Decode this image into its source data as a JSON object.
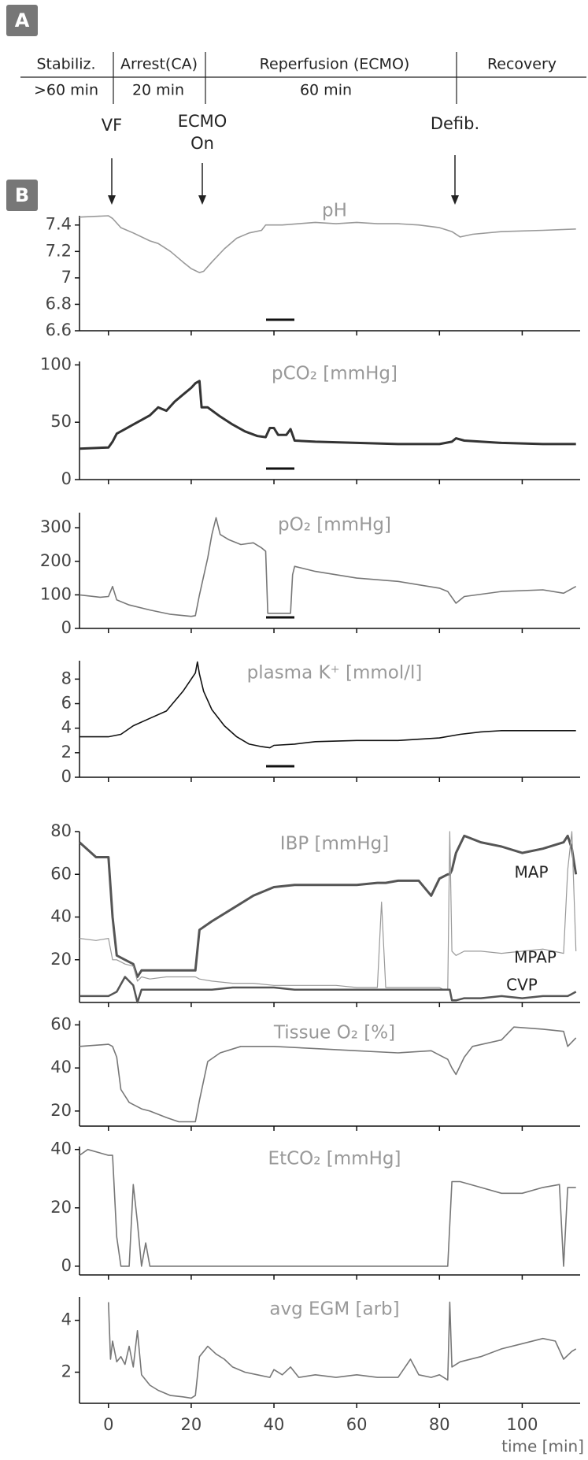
{
  "header": {
    "panels": [
      "A",
      "B"
    ],
    "phases": [
      {
        "label": "Stabiliz.",
        "duration": ">60 min"
      },
      {
        "label": "Arrest(CA)",
        "duration": "20 min"
      },
      {
        "label": "Reperfusion (ECMO)",
        "duration": "60 min"
      },
      {
        "label": "Recovery"
      }
    ],
    "events": [
      {
        "lines": [
          "VF"
        ]
      },
      {
        "lines": [
          "ECMO",
          "On"
        ]
      },
      {
        "lines": [
          "Defib."
        ]
      }
    ]
  },
  "chart_data": [
    {
      "type": "line",
      "title": "pH",
      "color": "#999999",
      "xlim": [
        -7,
        114
      ],
      "ylim": [
        6.6,
        7.47
      ],
      "yticks": [
        6.6,
        6.8,
        7,
        7.2,
        7.4
      ],
      "x": [
        -7,
        0,
        1,
        3,
        6,
        10,
        12,
        15,
        18,
        20,
        22,
        23,
        25,
        28,
        31,
        34,
        37,
        38,
        42,
        46,
        50,
        55,
        60,
        65,
        70,
        75,
        80,
        83,
        85,
        88,
        95,
        105,
        113
      ],
      "values": [
        7.46,
        7.47,
        7.45,
        7.38,
        7.34,
        7.28,
        7.26,
        7.2,
        7.12,
        7.07,
        7.04,
        7.05,
        7.12,
        7.22,
        7.3,
        7.34,
        7.36,
        7.4,
        7.4,
        7.41,
        7.42,
        7.41,
        7.42,
        7.41,
        7.41,
        7.4,
        7.38,
        7.35,
        7.31,
        7.33,
        7.35,
        7.36,
        7.37
      ]
    },
    {
      "type": "line",
      "title": "pCO₂ [mmHg]",
      "color": "#333333",
      "xlim": [
        -7,
        114
      ],
      "ylim": [
        0,
        103
      ],
      "yticks": [
        0,
        50,
        100
      ],
      "x": [
        -7,
        0,
        1,
        2,
        4,
        6,
        8,
        10,
        12,
        14,
        16,
        18,
        20,
        21,
        22,
        22.5,
        24,
        27,
        30,
        33,
        36,
        38,
        39,
        40,
        41,
        43,
        44,
        45,
        50,
        60,
        70,
        80,
        83,
        84,
        86,
        95,
        105,
        113
      ],
      "values": [
        27,
        28,
        33,
        40,
        44,
        48,
        52,
        56,
        63,
        60,
        68,
        74,
        80,
        84,
        86,
        63,
        63,
        55,
        48,
        42,
        38,
        37,
        45,
        45,
        39,
        39,
        44,
        34,
        33,
        32,
        31,
        31,
        33,
        36,
        34,
        32,
        31,
        31
      ]
    },
    {
      "type": "line",
      "title": "pO₂ [mmHg]",
      "color": "#777777",
      "xlim": [
        -7,
        114
      ],
      "ylim": [
        0,
        345
      ],
      "yticks": [
        0,
        100,
        200,
        300
      ],
      "x": [
        -7,
        -2,
        0,
        1,
        2,
        5,
        10,
        15,
        20,
        21,
        22,
        24,
        25,
        26,
        27,
        29,
        32,
        35,
        37,
        38,
        38.5,
        44,
        44.5,
        45,
        50,
        60,
        70,
        80,
        82,
        84,
        86,
        95,
        105,
        110,
        113
      ],
      "values": [
        100,
        93,
        95,
        125,
        85,
        70,
        55,
        42,
        36,
        38,
        100,
        210,
        280,
        330,
        280,
        265,
        250,
        255,
        240,
        230,
        45,
        45,
        160,
        185,
        170,
        150,
        140,
        120,
        110,
        75,
        95,
        110,
        115,
        105,
        125
      ]
    },
    {
      "type": "line",
      "title": "plasma K⁺ [mmol/l]",
      "color": "#111111",
      "xlim": [
        -7,
        114
      ],
      "ylim": [
        0,
        9.5
      ],
      "yticks": [
        0,
        2,
        4,
        6,
        8
      ],
      "x": [
        -7,
        0,
        3,
        6,
        10,
        14,
        16,
        18,
        20,
        21,
        21.5,
        22,
        23,
        25,
        28,
        31,
        34,
        37,
        39,
        40,
        45,
        50,
        60,
        70,
        80,
        85,
        90,
        95,
        105,
        113
      ],
      "values": [
        3.3,
        3.3,
        3.5,
        4.2,
        4.8,
        5.4,
        6.2,
        7,
        8,
        8.5,
        9.4,
        8.4,
        7,
        5.5,
        4.2,
        3.3,
        2.7,
        2.5,
        2.4,
        2.6,
        2.7,
        2.9,
        3,
        3,
        3.2,
        3.5,
        3.7,
        3.8,
        3.8,
        3.8
      ]
    },
    {
      "type": "line",
      "title": "IBP [mmHg]",
      "xlim": [
        -7,
        114
      ],
      "ylim": [
        0,
        80
      ],
      "yticks": [
        20,
        40,
        60,
        80
      ],
      "x": [
        -7,
        -3,
        0,
        1,
        2,
        4,
        6,
        7,
        8,
        10,
        14,
        20,
        21,
        22,
        25,
        30,
        35,
        40,
        45,
        50,
        55,
        60,
        65,
        66,
        67,
        70,
        75,
        78,
        80,
        81,
        82,
        82.5,
        83,
        84,
        86,
        90,
        95,
        100,
        105,
        110,
        111,
        112,
        113
      ],
      "series": [
        {
          "name": "MAP",
          "color": "#555555",
          "values": [
            75,
            68,
            68,
            40,
            22,
            20,
            18,
            12,
            15,
            15,
            15,
            15,
            15,
            34,
            38,
            44,
            50,
            54,
            55,
            55,
            55,
            55,
            56,
            56,
            56,
            57,
            57,
            50,
            58,
            59,
            60,
            60,
            62,
            70,
            78,
            75,
            73,
            70,
            72,
            75,
            78,
            72,
            60
          ]
        },
        {
          "name": "MPAP",
          "color": "#999999",
          "values": [
            30,
            29,
            30,
            20,
            20,
            18,
            17,
            10,
            12,
            11,
            12,
            12,
            12,
            11,
            10,
            9,
            9,
            8,
            8,
            8,
            8,
            7,
            7,
            47,
            7,
            7,
            7,
            7,
            7,
            6,
            6,
            80,
            24,
            22,
            24,
            24,
            23,
            24,
            25,
            23,
            62,
            80,
            24
          ]
        },
        {
          "name": "CVP",
          "color": "#555555",
          "values": [
            3,
            3,
            3,
            4,
            5,
            12,
            8,
            0,
            6,
            6,
            6,
            6,
            6,
            6,
            6,
            7,
            7,
            7,
            6,
            6,
            6,
            6,
            6,
            6,
            6,
            6,
            6,
            6,
            6,
            6,
            6,
            6,
            1,
            1,
            2,
            2,
            3,
            2,
            3,
            3,
            3,
            4,
            5
          ]
        }
      ]
    },
    {
      "type": "line",
      "title": "Tissue O₂ [%]",
      "color": "#777777",
      "xlim": [
        -7,
        114
      ],
      "ylim": [
        13,
        62
      ],
      "yticks": [
        20,
        40,
        60
      ],
      "x": [
        -7,
        0,
        1,
        2,
        3,
        5,
        8,
        10,
        14,
        17,
        20,
        21,
        22,
        24,
        27,
        32,
        40,
        50,
        60,
        70,
        78,
        80,
        82,
        83,
        84,
        86,
        88,
        95,
        98,
        105,
        110,
        111,
        113
      ],
      "values": [
        50,
        51,
        50,
        45,
        30,
        24,
        21,
        20,
        17,
        15,
        15,
        15,
        25,
        43,
        47,
        50,
        50,
        49,
        48,
        47,
        48,
        46,
        44,
        40,
        37,
        45,
        50,
        53,
        59,
        58,
        57,
        50,
        54
      ]
    },
    {
      "type": "line",
      "title": "EtCO₂ [mmHg]",
      "color": "#777777",
      "xlim": [
        -7,
        114
      ],
      "ylim": [
        -3,
        41
      ],
      "yticks": [
        0,
        20,
        40
      ],
      "x": [
        -7,
        -5,
        0,
        1,
        2,
        3,
        5,
        6,
        7,
        8,
        9,
        10,
        40,
        80,
        82,
        83,
        85,
        90,
        95,
        100,
        105,
        109,
        110,
        111,
        113
      ],
      "values": [
        38,
        40,
        38,
        38,
        10,
        0,
        0,
        28,
        15,
        0,
        8,
        0,
        0,
        0,
        0,
        29,
        29,
        27,
        25,
        25,
        27,
        28,
        0,
        27,
        27
      ]
    },
    {
      "type": "line",
      "title": "avg EGM [arb]",
      "color": "#777777",
      "xlim": [
        -7,
        114
      ],
      "ylim": [
        0.8,
        4.9
      ],
      "yticks": [
        2,
        4
      ],
      "xticks": [
        0,
        20,
        40,
        60,
        80,
        100
      ],
      "xlabel": "time [min]",
      "x": [
        0,
        0.5,
        1,
        2,
        3,
        4,
        5,
        6,
        7,
        8,
        9,
        10,
        12,
        15,
        18,
        20,
        21,
        22,
        23,
        24,
        26,
        28,
        30,
        33,
        36,
        39,
        40,
        42,
        44,
        46,
        50,
        55,
        60,
        65,
        70,
        73,
        75,
        78,
        80,
        82,
        82.5,
        83,
        85,
        90,
        95,
        100,
        105,
        108,
        110,
        112,
        113
      ],
      "values": [
        4.7,
        2.5,
        3.2,
        2.4,
        2.6,
        2.3,
        3,
        2.2,
        3.6,
        1.9,
        1.7,
        1.5,
        1.3,
        1.1,
        1.05,
        1,
        1.1,
        2.6,
        2.8,
        3,
        2.7,
        2.5,
        2.2,
        2,
        1.9,
        1.8,
        2.1,
        1.9,
        2.2,
        1.8,
        1.9,
        1.8,
        1.9,
        1.8,
        1.8,
        2.5,
        1.9,
        1.8,
        1.9,
        1.7,
        4.7,
        2.2,
        2.4,
        2.6,
        2.9,
        3.1,
        3.3,
        3.2,
        2.5,
        2.8,
        2.9
      ]
    }
  ]
}
